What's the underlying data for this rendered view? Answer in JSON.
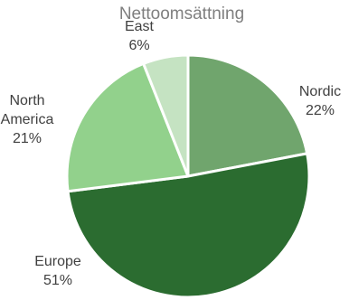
{
  "chart_data": {
    "type": "pie",
    "title": "Nettoomsättning",
    "unit": "%",
    "categories": [
      "Nordic",
      "Europe",
      "North America",
      "East"
    ],
    "values": [
      22,
      51,
      21,
      6
    ],
    "label_lines": [
      [
        "Nordic"
      ],
      [
        "Europe"
      ],
      [
        "North",
        "America"
      ],
      [
        "East"
      ]
    ],
    "colors": [
      "#70a56d",
      "#2b6c30",
      "#92d18c",
      "#c5e3c2"
    ],
    "slice_border_color": "#ffffff",
    "start_angle_deg": 0,
    "direction": "clockwise",
    "legend": "none"
  }
}
